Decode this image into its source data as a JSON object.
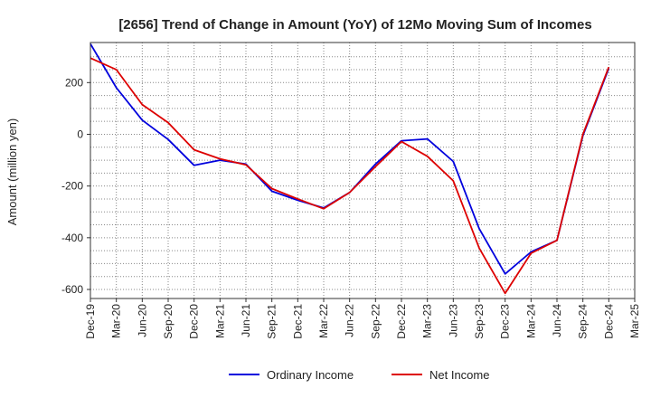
{
  "chart_data": {
    "type": "line",
    "title": "[2656]  Trend of Change in Amount (YoY) of 12Mo Moving Sum of Incomes",
    "xlabel": "",
    "ylabel": "Amount (million yen)",
    "categories": [
      "Dec-19",
      "Mar-20",
      "Jun-20",
      "Sep-20",
      "Dec-20",
      "Mar-21",
      "Jun-21",
      "Sep-21",
      "Dec-21",
      "Mar-22",
      "Jun-22",
      "Sep-22",
      "Dec-22",
      "Mar-23",
      "Jun-23",
      "Sep-23",
      "Dec-23",
      "Mar-24",
      "Jun-24",
      "Sep-24",
      "Dec-24",
      "Mar-25"
    ],
    "yticks": [
      200,
      0,
      -200,
      -400,
      -600
    ],
    "ylim": [
      -635,
      355
    ],
    "grid": true,
    "legend_position": "bottom-center",
    "series": [
      {
        "name": "Ordinary Income",
        "color": "#0000dd",
        "values": [
          350,
          180,
          55,
          -20,
          -120,
          -100,
          -115,
          -220,
          -255,
          -285,
          -225,
          -115,
          -25,
          -18,
          -105,
          -365,
          -540,
          -455,
          -410,
          -5,
          255,
          null
        ]
      },
      {
        "name": "Net Income",
        "color": "#dd0000",
        "values": [
          295,
          250,
          115,
          45,
          -60,
          -95,
          -118,
          -210,
          -250,
          -288,
          -225,
          -125,
          -28,
          -85,
          -180,
          -440,
          -615,
          -460,
          -410,
          0,
          260,
          null
        ]
      }
    ]
  }
}
